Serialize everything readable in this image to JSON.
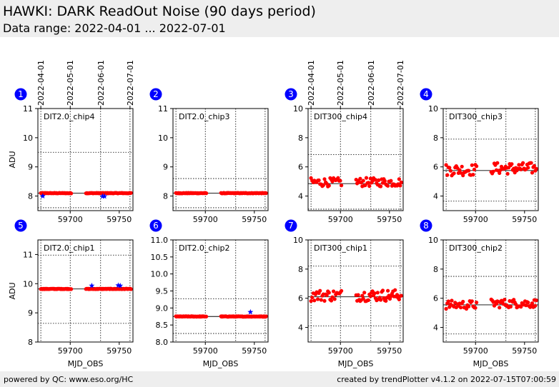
{
  "header": {
    "title": "HAWKI: DARK ReadOut Noise (90 days period)",
    "subtitle": "Data range: 2022-04-01 ... 2022-07-01"
  },
  "footer": {
    "left": "powered by QC: www.eso.org/HC",
    "right": "created by trendPlotter v4.1.2 on 2022-07-15T07:00:59"
  },
  "date_ticks": [
    {
      "label": "2022-04-01",
      "mjd": 59670
    },
    {
      "label": "2022-05-01",
      "mjd": 59700
    },
    {
      "label": "2022-06-01",
      "mjd": 59731
    },
    {
      "label": "2022-07-01",
      "mjd": 59761
    }
  ],
  "colors": {
    "data": "#ff0000",
    "outlier": "#0000ff",
    "badge": "#0000ff",
    "median": "#000000"
  },
  "chart_data": [
    {
      "type": "scatter",
      "badge": "1",
      "name": "DIT2.0_chip4",
      "xlabel": "",
      "ylabel": "ADU",
      "xlim": [
        59667,
        59764
      ],
      "ylim": [
        7.5,
        11
      ],
      "yticks": [
        8,
        9,
        10,
        11
      ],
      "xticks": [
        59700,
        59750
      ],
      "median": 8.1,
      "limits": [
        9.5,
        7.6
      ],
      "series": [
        {
          "x_start": 59670,
          "x_end": 59701,
          "n": 60,
          "y": 8.1,
          "noise": 0.01
        },
        {
          "x_start": 59716,
          "x_end": 59762,
          "n": 90,
          "y": 8.1,
          "noise": 0.01
        }
      ],
      "outliers": [
        [
          59672,
          8.0
        ],
        [
          59733,
          7.99
        ],
        [
          59735,
          7.99
        ]
      ]
    },
    {
      "type": "scatter",
      "badge": "2",
      "name": "DIT2.0_chip3",
      "xlabel": "",
      "ylabel": "",
      "xlim": [
        59667,
        59764
      ],
      "ylim": [
        7.5,
        11
      ],
      "yticks": [
        8,
        9,
        10,
        11
      ],
      "xticks": [
        59700,
        59750
      ],
      "median": 8.1,
      "limits": [
        8.6,
        7.6
      ],
      "series": [
        {
          "x_start": 59670,
          "x_end": 59701,
          "n": 60,
          "y": 8.1,
          "noise": 0.01
        },
        {
          "x_start": 59716,
          "x_end": 59762,
          "n": 90,
          "y": 8.1,
          "noise": 0.01
        }
      ],
      "outliers": []
    },
    {
      "type": "scatter",
      "badge": "3",
      "name": "DIT300_chip4",
      "xlabel": "",
      "ylabel": "",
      "xlim": [
        59667,
        59764
      ],
      "ylim": [
        3,
        10
      ],
      "yticks": [
        4,
        6,
        8,
        10
      ],
      "xticks": [
        59700,
        59750
      ],
      "median": 4.85,
      "limits": [
        6.85,
        3.1
      ],
      "series": [
        {
          "x_start": 59670,
          "x_end": 59701,
          "n": 28,
          "y": 4.95,
          "noise": 0.3
        },
        {
          "x_start": 59716,
          "x_end": 59762,
          "n": 45,
          "y": 4.95,
          "noise": 0.3
        }
      ],
      "outliers": []
    },
    {
      "type": "scatter",
      "badge": "4",
      "name": "DIT300_chip3",
      "xlabel": "",
      "ylabel": "",
      "xlim": [
        59667,
        59764
      ],
      "ylim": [
        3,
        10
      ],
      "yticks": [
        4,
        6,
        8,
        10
      ],
      "xticks": [
        59700,
        59750
      ],
      "median": 5.75,
      "limits": [
        7.9,
        3.65
      ],
      "series": [
        {
          "x_start": 59670,
          "x_end": 59701,
          "n": 28,
          "y": 5.8,
          "noise": 0.4
        },
        {
          "x_start": 59716,
          "x_end": 59762,
          "n": 45,
          "y": 5.9,
          "noise": 0.4
        }
      ],
      "outliers": []
    },
    {
      "type": "scatter",
      "badge": "5",
      "name": "DIT2.0_chip1",
      "xlabel": "MJD_OBS",
      "ylabel": "ADU",
      "xlim": [
        59667,
        59764
      ],
      "ylim": [
        8,
        11.5
      ],
      "yticks": [
        8,
        9,
        10,
        11
      ],
      "xticks": [
        59700,
        59750
      ],
      "median": 9.82,
      "limits": [
        10.98,
        8.64
      ],
      "series": [
        {
          "x_start": 59670,
          "x_end": 59701,
          "n": 60,
          "y": 9.82,
          "noise": 0.01
        },
        {
          "x_start": 59716,
          "x_end": 59762,
          "n": 90,
          "y": 9.82,
          "noise": 0.01
        }
      ],
      "outliers": [
        [
          59722,
          9.93
        ],
        [
          59749,
          9.94
        ],
        [
          59751,
          9.93
        ]
      ]
    },
    {
      "type": "scatter",
      "badge": "6",
      "name": "DIT2.0_chip2",
      "xlabel": "MJD_OBS",
      "ylabel": "",
      "xlim": [
        59667,
        59764
      ],
      "ylim": [
        8.0,
        11.0
      ],
      "yticks": [
        8.0,
        8.5,
        9.0,
        9.5,
        10.0,
        10.5,
        11.0
      ],
      "xticks": [
        59700,
        59750
      ],
      "median": 8.75,
      "limits": [
        9.27,
        8.25
      ],
      "series": [
        {
          "x_start": 59670,
          "x_end": 59701,
          "n": 60,
          "y": 8.75,
          "noise": 0.008
        },
        {
          "x_start": 59716,
          "x_end": 59762,
          "n": 90,
          "y": 8.75,
          "noise": 0.008
        }
      ],
      "outliers": [
        [
          59746,
          8.88
        ]
      ]
    },
    {
      "type": "scatter",
      "badge": "7",
      "name": "DIT300_chip1",
      "xlabel": "MJD_OBS",
      "ylabel": "",
      "xlim": [
        59667,
        59764
      ],
      "ylim": [
        3,
        10
      ],
      "yticks": [
        4,
        6,
        8,
        10
      ],
      "xticks": [
        59700,
        59750
      ],
      "median": 6.1,
      "limits": [
        8.2,
        4.1
      ],
      "series": [
        {
          "x_start": 59670,
          "x_end": 59701,
          "n": 28,
          "y": 6.2,
          "noise": 0.4
        },
        {
          "x_start": 59716,
          "x_end": 59762,
          "n": 45,
          "y": 6.2,
          "noise": 0.4
        }
      ],
      "outliers": []
    },
    {
      "type": "scatter",
      "badge": "8",
      "name": "DIT300_chip2",
      "xlabel": "MJD_OBS",
      "ylabel": "",
      "xlim": [
        59667,
        59764
      ],
      "ylim": [
        3,
        10
      ],
      "yticks": [
        4,
        6,
        8,
        10
      ],
      "xticks": [
        59700,
        59750
      ],
      "median": 5.55,
      "limits": [
        7.5,
        3.55
      ],
      "series": [
        {
          "x_start": 59670,
          "x_end": 59701,
          "n": 28,
          "y": 5.55,
          "noise": 0.3
        },
        {
          "x_start": 59716,
          "x_end": 59762,
          "n": 45,
          "y": 5.65,
          "noise": 0.3
        }
      ],
      "outliers": []
    }
  ]
}
